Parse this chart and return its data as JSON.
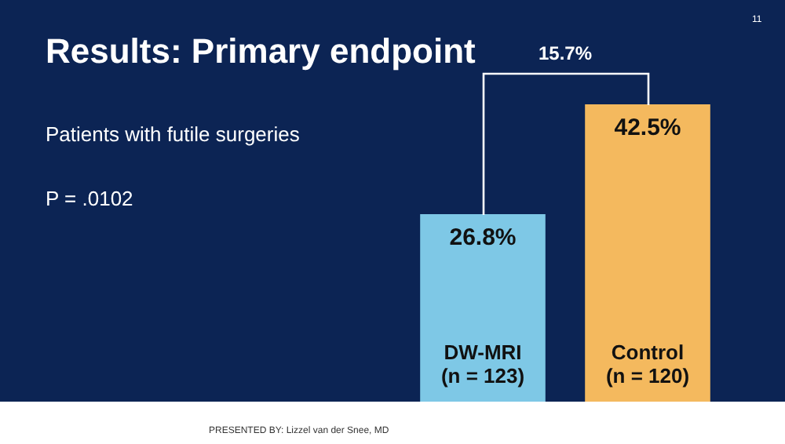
{
  "chart_data": {
    "type": "bar",
    "title": "Results: Primary endpoint",
    "categories": [
      "DW-MRI\n(n = 123)",
      "Control\n(n = 120)"
    ],
    "values": [
      26.8,
      42.5
    ],
    "colors": [
      "#7ec8e6",
      "#f4b95e"
    ],
    "value_labels": [
      "26.8%",
      "42.5%"
    ],
    "annotations": [
      "Patients with futile surgeries",
      "P = .0102",
      "15.7%",
      "PRESENTED BY: Lizzel van der Snee, MD",
      "11"
    ]
  }
}
